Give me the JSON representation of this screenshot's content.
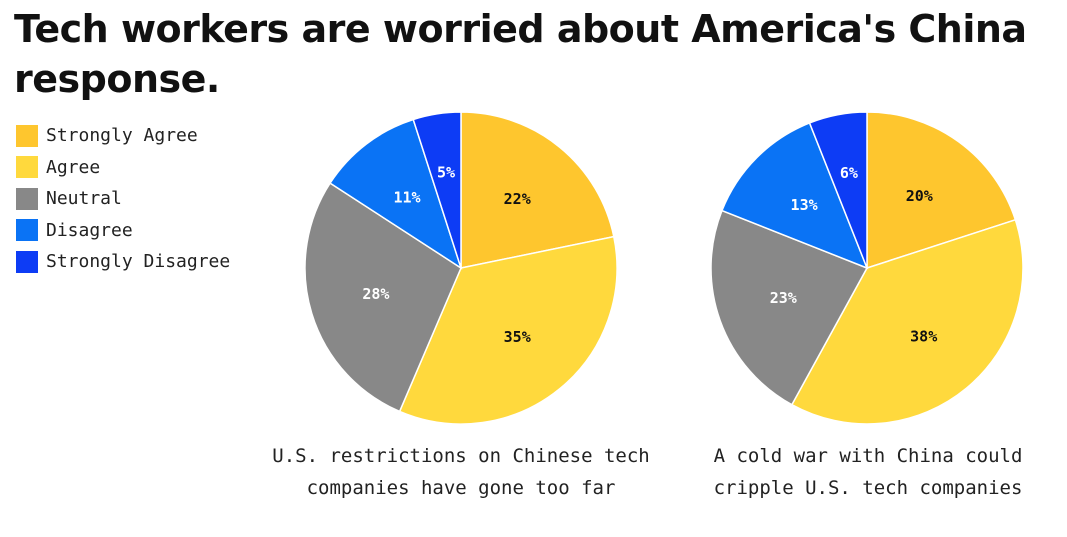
{
  "title": "Tech workers are worried about America's China response.",
  "legend": [
    {
      "label": "Strongly Agree",
      "color": "#FEC62E"
    },
    {
      "label": "Agree",
      "color": "#FFD93D"
    },
    {
      "label": "Neutral",
      "color": "#888888"
    },
    {
      "label": "Disagree",
      "color": "#0A73F5"
    },
    {
      "label": "Strongly Disagree",
      "color": "#0D3CF5"
    }
  ],
  "chart_data": [
    {
      "type": "pie",
      "caption": "U.S. restrictions on Chinese tech companies have gone too far",
      "categories": [
        "Strongly Agree",
        "Agree",
        "Neutral",
        "Disagree",
        "Strongly Disagree"
      ],
      "values": [
        22,
        35,
        28,
        11,
        5
      ],
      "labels": [
        "22%",
        "35%",
        "28%",
        "11%",
        "5%"
      ]
    },
    {
      "type": "pie",
      "caption": "A cold war with China could cripple U.S. tech companies",
      "categories": [
        "Strongly Agree",
        "Agree",
        "Neutral",
        "Disagree",
        "Strongly Disagree"
      ],
      "values": [
        20,
        38,
        23,
        13,
        6
      ],
      "labels": [
        "20%",
        "38%",
        "23%",
        "13%",
        "6%"
      ]
    }
  ]
}
